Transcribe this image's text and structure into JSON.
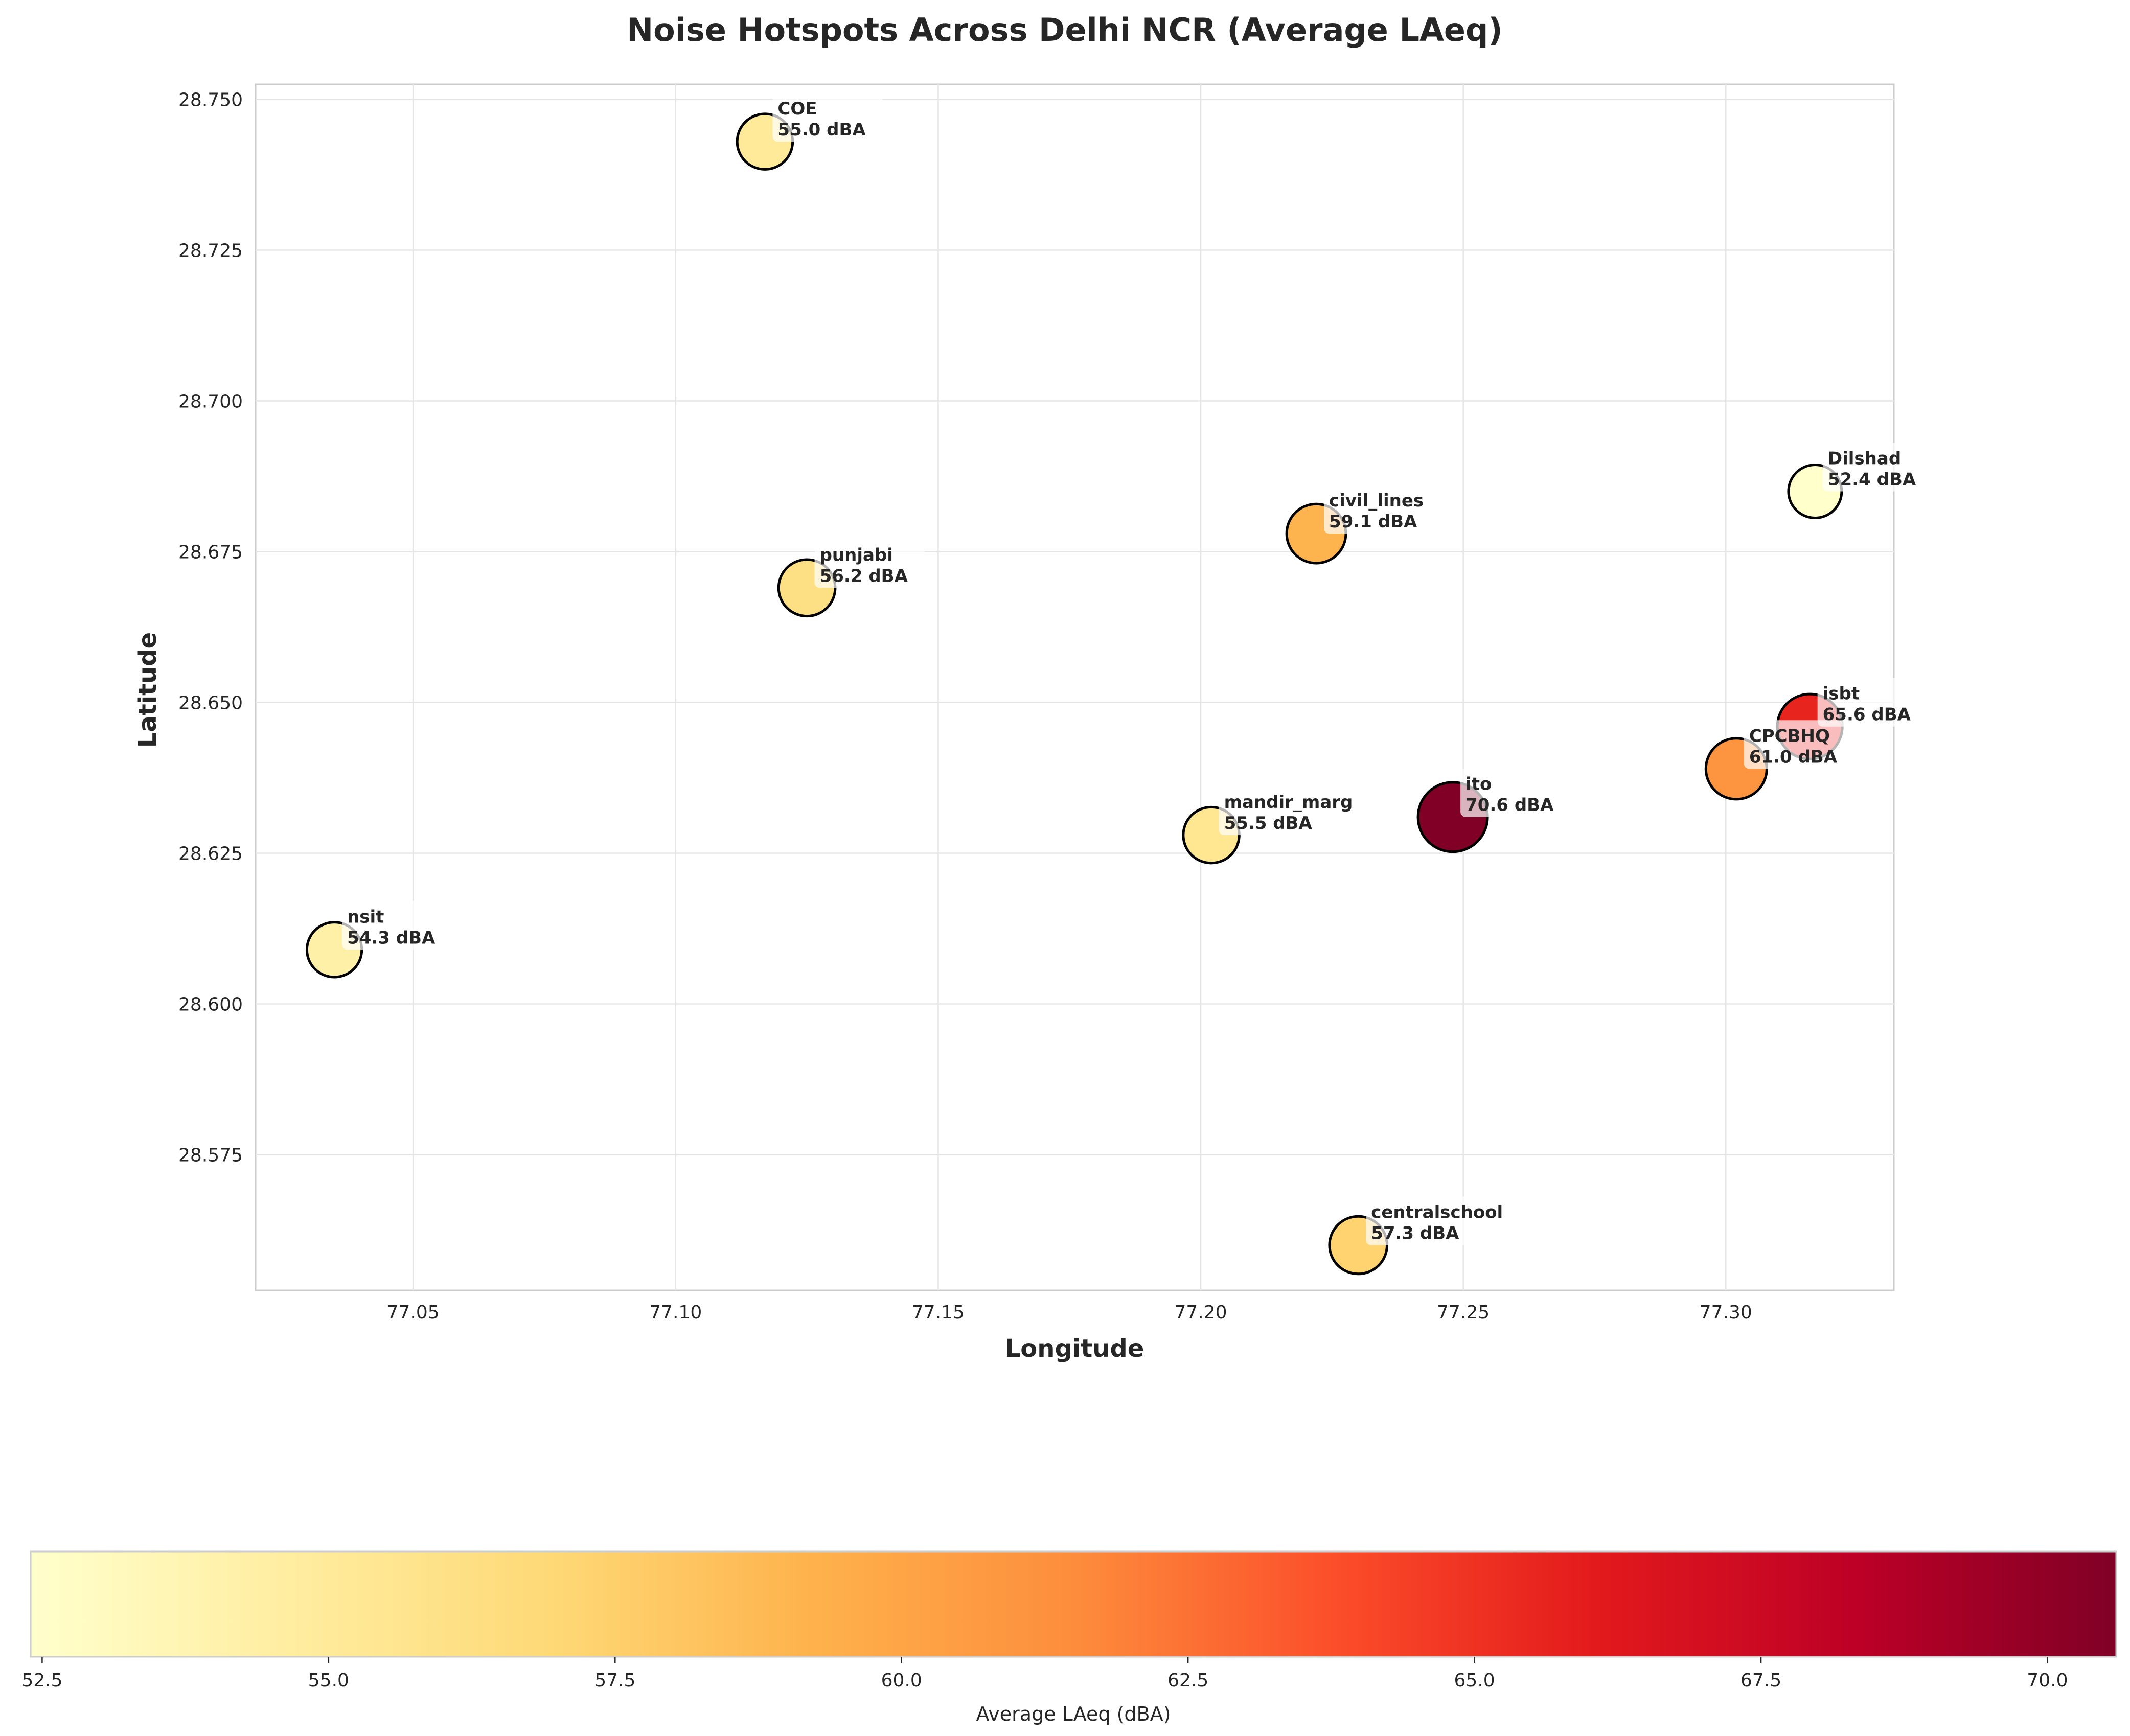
{
  "chart_data": {
    "type": "scatter",
    "title": "Noise Hotspots Across Delhi NCR (Average LAeq)",
    "xlabel": "Longitude",
    "ylabel": "Latitude",
    "xlim": [
      77.02,
      77.332
    ],
    "ylim": [
      28.5525,
      28.7525
    ],
    "x_ticks": [
      "77.05",
      "77.10",
      "77.15",
      "77.20",
      "77.25",
      "77.30"
    ],
    "y_ticks": [
      "28.575",
      "28.600",
      "28.625",
      "28.650",
      "28.675",
      "28.700",
      "28.725",
      "28.750"
    ],
    "grid": true,
    "colormap": "YlOrRd",
    "color_range": [
      52.4,
      70.6
    ],
    "colorbar_label": "Average LAeq (dBA)",
    "colorbar_ticks": [
      "52.5",
      "55.0",
      "57.5",
      "60.0",
      "62.5",
      "65.0",
      "67.5",
      "70.0"
    ],
    "points": [
      {
        "name": "COE",
        "x": 77.117,
        "y": 28.743,
        "value": 55.0,
        "label": "55.0 dBA"
      },
      {
        "name": "punjabi",
        "x": 77.125,
        "y": 28.669,
        "value": 56.2,
        "label": "56.2 dBA"
      },
      {
        "name": "civil_lines",
        "x": 77.222,
        "y": 28.678,
        "value": 59.1,
        "label": "59.1 dBA"
      },
      {
        "name": "Dilshad",
        "x": 77.317,
        "y": 28.685,
        "value": 52.4,
        "label": "52.4 dBA"
      },
      {
        "name": "isbt",
        "x": 77.316,
        "y": 28.646,
        "value": 65.6,
        "label": "65.6 dBA"
      },
      {
        "name": "CPCBHQ",
        "x": 77.302,
        "y": 28.639,
        "value": 61.0,
        "label": "61.0 dBA"
      },
      {
        "name": "ito",
        "x": 77.248,
        "y": 28.631,
        "value": 70.6,
        "label": "70.6 dBA"
      },
      {
        "name": "mandir_marg",
        "x": 77.202,
        "y": 28.628,
        "value": 55.5,
        "label": "55.5 dBA"
      },
      {
        "name": "nsit",
        "x": 77.035,
        "y": 28.609,
        "value": 54.3,
        "label": "54.3 dBA"
      },
      {
        "name": "centralschool",
        "x": 77.23,
        "y": 28.56,
        "value": 57.3,
        "label": "57.3 dBA"
      }
    ]
  }
}
